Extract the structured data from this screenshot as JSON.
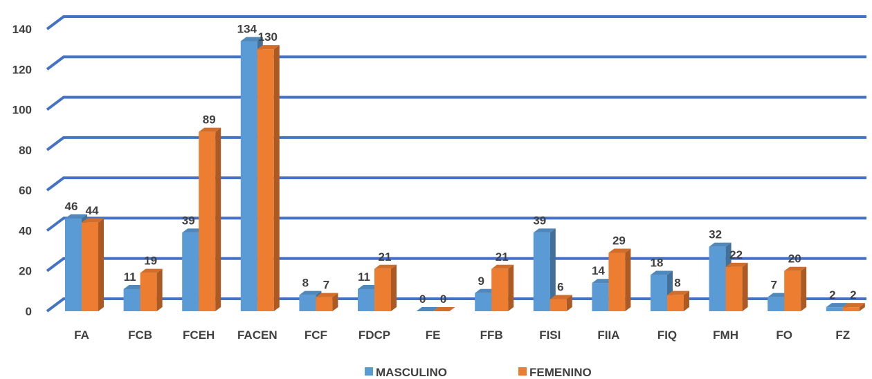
{
  "chart_data": {
    "type": "bar",
    "title": "",
    "xlabel": "",
    "ylabel": "",
    "ylim": [
      0,
      140
    ],
    "yticks": [
      0,
      20,
      40,
      60,
      80,
      100,
      120,
      140
    ],
    "grid": true,
    "legend_position": "bottom",
    "categories": [
      "FA",
      "FCB",
      "FCEH",
      "FACEN",
      "FCF",
      "FDCP",
      "FE",
      "FFB",
      "FISI",
      "FIIA",
      "FIQ",
      "FMH",
      "FO",
      "FZ"
    ],
    "series": [
      {
        "name": "MASCULINO",
        "color": "#5B9BD5",
        "values": [
          46,
          11,
          39,
          134,
          8,
          11,
          0,
          9,
          39,
          14,
          18,
          32,
          7,
          2
        ]
      },
      {
        "name": "FEMENINO",
        "color": "#ED7D31",
        "values": [
          44,
          19,
          89,
          130,
          7,
          21,
          0,
          21,
          6,
          29,
          8,
          22,
          20,
          2
        ]
      }
    ],
    "gridline_color": "#4472C4"
  }
}
